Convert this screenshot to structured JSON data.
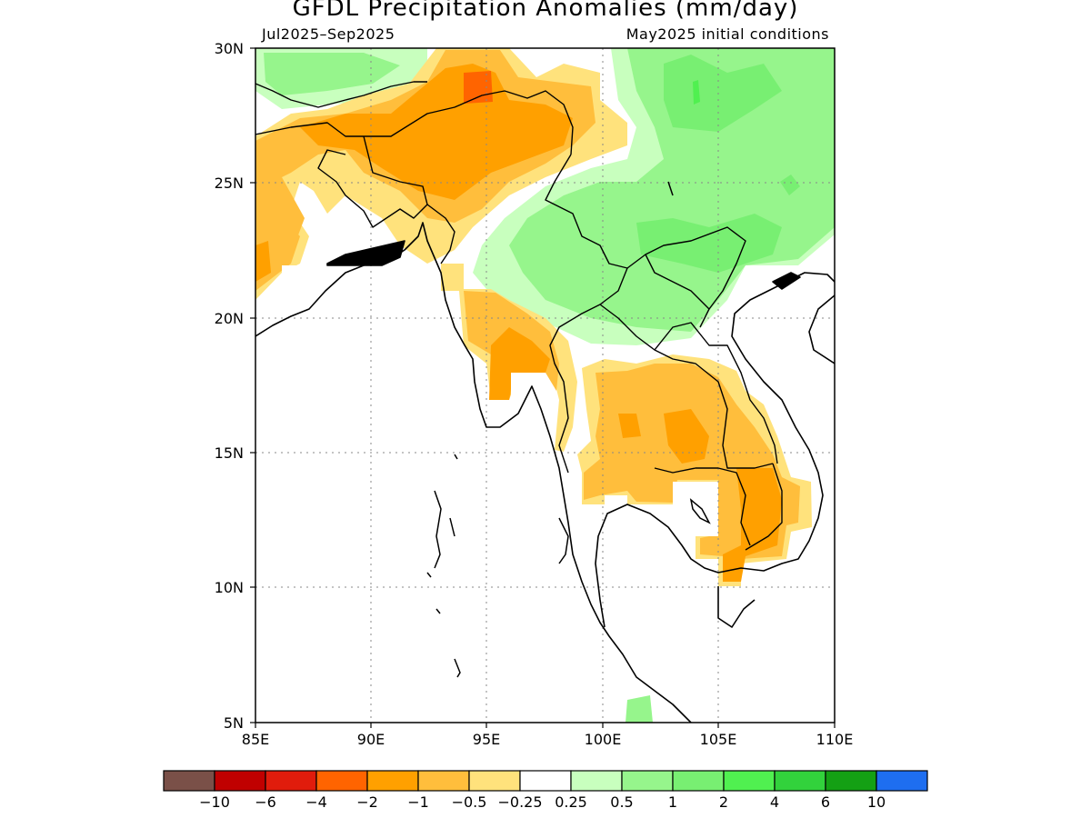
{
  "title": "GFDL Precipitation Anomalies (mm/day)",
  "period": "Jul2025–Sep2025",
  "initial_conditions": "May2025 initial conditions",
  "map": {
    "lon_range": [
      85,
      110
    ],
    "lat_range": [
      5,
      30
    ],
    "lon_ticks": [
      "85E",
      "90E",
      "95E",
      "100E",
      "105E",
      "110E"
    ],
    "lat_ticks": [
      "30N",
      "25N",
      "20N",
      "15N",
      "10N",
      "5N"
    ],
    "grid": true
  },
  "legend": {
    "colors": [
      "#7a5048",
      "#c00000",
      "#e01c0c",
      "#ff6400",
      "#ffa000",
      "#ffbe3c",
      "#ffe27c",
      "#ffffff",
      "#c8ffbe",
      "#96f58c",
      "#78ef72",
      "#50f050",
      "#32d23c",
      "#14a014",
      "#1e6ef0"
    ],
    "labels": [
      "−10",
      "−6",
      "−4",
      "−2",
      "−1",
      "−0.5",
      "−0.25",
      "0.25",
      "0.5",
      "1",
      "2",
      "4",
      "6",
      "10"
    ]
  }
}
